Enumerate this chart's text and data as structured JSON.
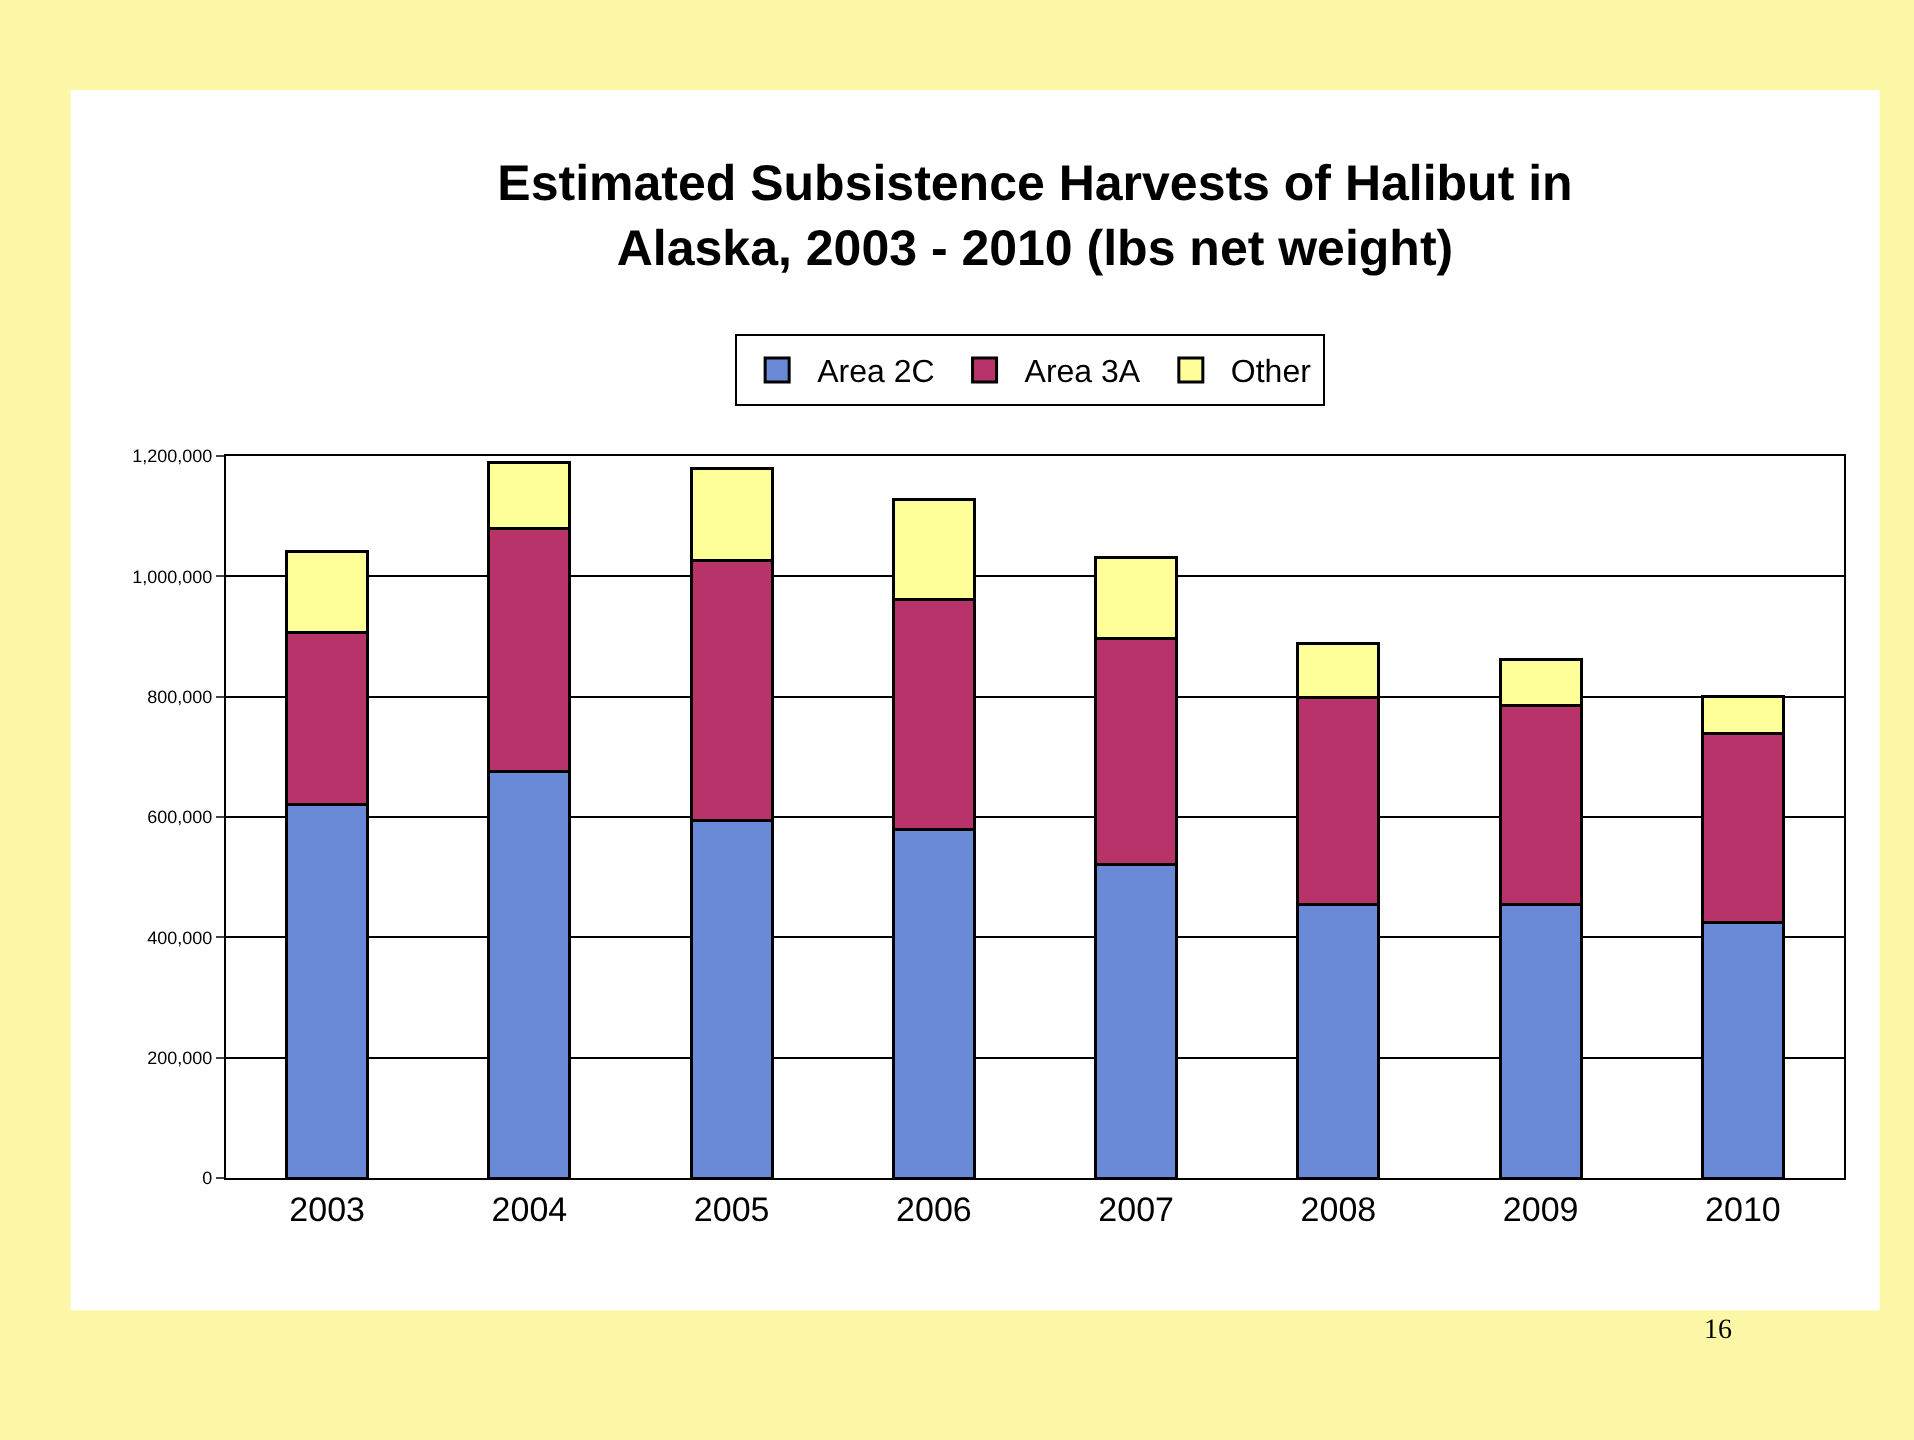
{
  "chart_data": {
    "type": "bar",
    "stacked": true,
    "title": "Estimated Subsistence Harvests of Halibut in\nAlaska, 2003 - 2010 (lbs net weight)",
    "categories": [
      "2003",
      "2004",
      "2005",
      "2006",
      "2007",
      "2008",
      "2009",
      "2010"
    ],
    "series": [
      {
        "name": "Area 2C",
        "color": "#6a8ad8",
        "values": [
          620000,
          675000,
          594000,
          580000,
          521000,
          455000,
          455000,
          424000
        ]
      },
      {
        "name": "Area 3A",
        "color": "#b8336a",
        "values": [
          286000,
          404000,
          433000,
          381000,
          376000,
          343000,
          331000,
          315000
        ]
      },
      {
        "name": "Other",
        "color": "#ffff99",
        "values": [
          135000,
          110000,
          152000,
          166000,
          135000,
          90000,
          75000,
          61000
        ]
      }
    ],
    "ylim": [
      0,
      1200000
    ],
    "yticks": [
      {
        "value": 0,
        "label": "0"
      },
      {
        "value": 200000,
        "label": "200,000"
      },
      {
        "value": 400000,
        "label": "400,000"
      },
      {
        "value": 600000,
        "label": "600,000"
      },
      {
        "value": 800000,
        "label": "800,000"
      },
      {
        "value": 1000000,
        "label": "1,000,000"
      },
      {
        "value": 1200000,
        "label": "1,200,000"
      }
    ],
    "grid": "y",
    "legend": "top",
    "annotations": [
      "16"
    ]
  }
}
